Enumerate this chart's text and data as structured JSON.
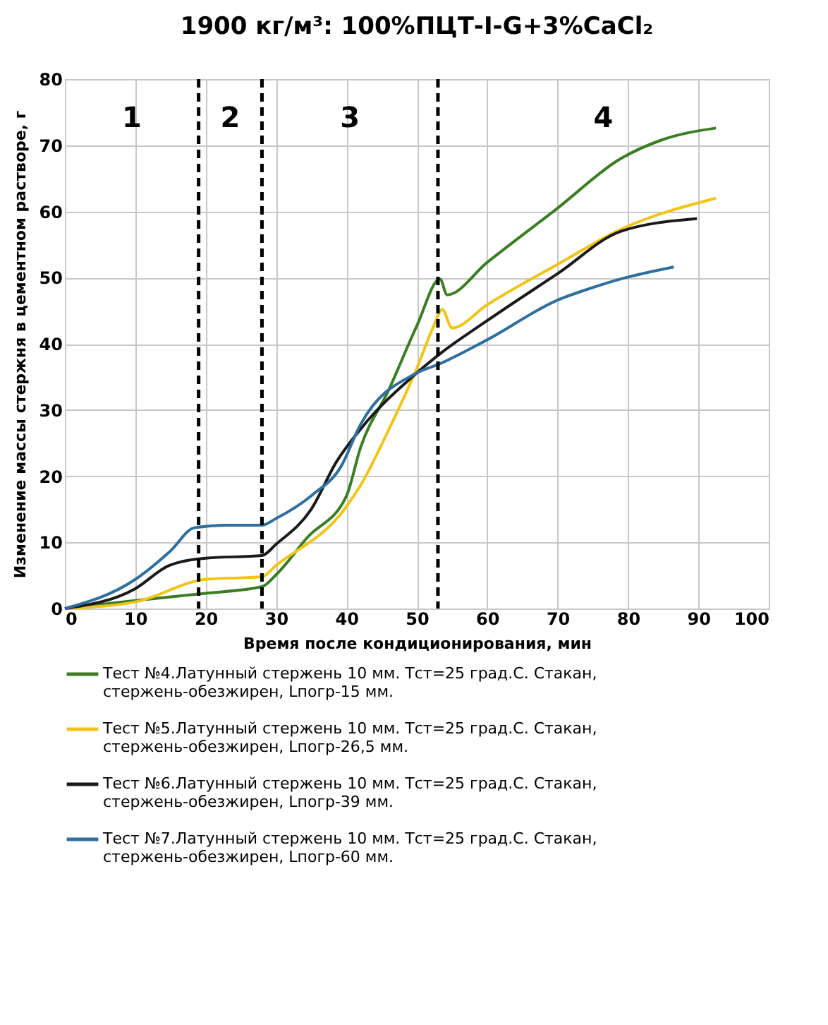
{
  "chart_data": {
    "type": "line",
    "title": "1900 кг/м³: 100%ПЦТ-I-G+3%CaCl₂",
    "xlabel": "Время после кондиционирования, мин",
    "ylabel": "Изменение массы стержня в цементном растворе, г",
    "xlim": [
      0,
      100
    ],
    "xticks": [
      0,
      10,
      20,
      30,
      40,
      50,
      60,
      70,
      80,
      90,
      100
    ],
    "ylim": [
      0,
      80
    ],
    "yticks": [
      0,
      10,
      20,
      30,
      40,
      50,
      60,
      70,
      80
    ],
    "grid": true,
    "legend": "bottom",
    "marker": "none",
    "line_style": "solid",
    "series": [
      {
        "name": "Тест №4.Латунный стержень 10 мм. Tст=25 град.С. Стакан, стержень-обезжирен, Lпогр-15 мм.",
        "color": "#3b7d23",
        "x": [
          0,
          10,
          20,
          28,
          30,
          34.5,
          40,
          42,
          46,
          50,
          53.3,
          54.3,
          60,
          70,
          79,
          84.8,
          92.5
        ],
        "values": [
          0,
          1.2,
          2.3,
          3.3,
          5.1,
          10.8,
          17,
          24.3,
          33,
          42.7,
          49.8,
          47.4,
          52.3,
          60.5,
          68,
          70.8,
          72.6
        ]
      },
      {
        "name": "Тест №5.Латунный стержень 10 мм. Tст=25 град.С. Стакан, стержень-обезжирен, Lпогр-26,5 мм.",
        "color": "#f0c419",
        "x": [
          0,
          10,
          20,
          28,
          30,
          40,
          42,
          46,
          50,
          52.4,
          53.6,
          55,
          60,
          70,
          79,
          92.5
        ],
        "values": [
          0,
          1,
          4.4,
          4.8,
          6.5,
          15.4,
          18.6,
          27,
          36.3,
          42.7,
          45.2,
          42.4,
          45.9,
          52,
          57.3,
          62
        ]
      },
      {
        "name": "Тест №6.Латунный стержень 10 мм. Tст=25 град.С. Стакан, стержень-обезжирен, Lпогр-39 мм.",
        "color": "#1a1a1a",
        "x": [
          0,
          10,
          14.8,
          20,
          28,
          30,
          35,
          38.6,
          42,
          50,
          53.3,
          60,
          70,
          79,
          89.8
        ],
        "values": [
          0,
          3,
          6.5,
          7.6,
          8,
          9.7,
          15,
          22.2,
          27.1,
          35.6,
          38.5,
          43.5,
          50.6,
          57,
          58.9
        ]
      },
      {
        "name": "Тест №7.Латунный стержень 10 мм. Tст=25 град.С. Стакан, стержень-обезжирен, Lпогр-60 мм.",
        "color": "#2e6f9e",
        "x": [
          0,
          10,
          15,
          18.4,
          23,
          28,
          30,
          35.2,
          39.2,
          42,
          50,
          53.3,
          60,
          70,
          74.7,
          79,
          86.5
        ],
        "values": [
          0,
          4.4,
          8.7,
          12.2,
          12.6,
          12.6,
          13.6,
          17.2,
          21.4,
          27.8,
          35.6,
          37,
          40.6,
          46.6,
          48.4,
          49.8,
          51.6
        ]
      }
    ],
    "ref_lines": [
      {
        "axis": "x",
        "value": 19,
        "color": "#000000",
        "line_style": "dashed"
      },
      {
        "axis": "x",
        "value": 28,
        "color": "#000000",
        "line_style": "dashed"
      },
      {
        "axis": "x",
        "value": 53,
        "color": "#000000",
        "line_style": "dashed"
      }
    ],
    "annotations": [
      "1",
      "2",
      "3",
      "4"
    ]
  }
}
